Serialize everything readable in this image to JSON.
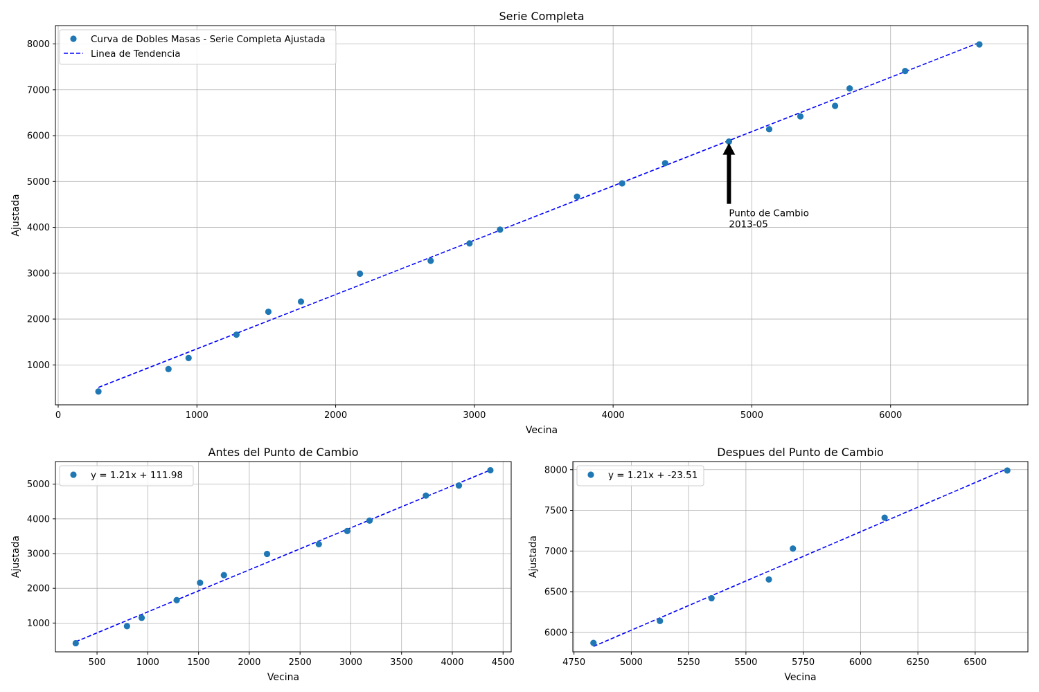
{
  "colors": {
    "points": "#1f77b4",
    "trend": "#0000ff",
    "grid": "#b0b0b0",
    "annotation_arrow": "#000000"
  },
  "chart_data": [
    {
      "type": "scatter",
      "title": "Serie Completa",
      "xlabel": "Vecina",
      "ylabel": "Ajustada",
      "xlim": [
        -20,
        6990
      ],
      "ylim": [
        130,
        8400
      ],
      "xticks": [
        0,
        1000,
        2000,
        3000,
        4000,
        5000,
        6000
      ],
      "yticks": [
        1000,
        2000,
        3000,
        4000,
        5000,
        6000,
        7000,
        8000
      ],
      "grid": true,
      "legend_placement": "top-left",
      "series": [
        {
          "name": "Curva de Dobles Masas - Serie Completa Ajustada",
          "kind": "points",
          "x": [
            290,
            795,
            940,
            1285,
            1515,
            1750,
            2175,
            2685,
            2965,
            3185,
            3740,
            4065,
            4375,
            4835,
            5125,
            5350,
            5600,
            5705,
            6105,
            6640
          ],
          "y": [
            420,
            910,
            1150,
            1660,
            2160,
            2380,
            2990,
            3270,
            3650,
            3950,
            4670,
            4960,
            5400,
            5870,
            6140,
            6420,
            6650,
            7030,
            7410,
            7990
          ]
        },
        {
          "name": "Linea de Tendencia",
          "kind": "dashed-line",
          "x": [
            290,
            6640
          ],
          "y": [
            510,
            8030
          ]
        }
      ],
      "annotation": {
        "text_lines": [
          "Punto de Cambio",
          "2013-05"
        ],
        "point": [
          4835,
          5870
        ],
        "text_at": [
          4835,
          4060
        ]
      }
    },
    {
      "type": "scatter",
      "title": "Antes del Punto de Cambio",
      "xlabel": "Vecina",
      "ylabel": "Ajustada",
      "xlim": [
        90,
        4580
      ],
      "ylim": [
        170,
        5650
      ],
      "xticks": [
        500,
        1000,
        1500,
        2000,
        2500,
        3000,
        3500,
        4000,
        4500
      ],
      "yticks": [
        1000,
        2000,
        3000,
        4000,
        5000
      ],
      "grid": true,
      "legend_placement": "top-left",
      "series": [
        {
          "name": "y = 1.21x + 111.98",
          "kind": "points",
          "x": [
            290,
            795,
            940,
            1285,
            1515,
            1750,
            2175,
            2685,
            2965,
            3185,
            3740,
            4065,
            4375
          ],
          "y": [
            420,
            910,
            1150,
            1660,
            2160,
            2380,
            2990,
            3270,
            3650,
            3950,
            4670,
            4960,
            5400
          ]
        },
        {
          "kind": "dashed-line",
          "x": [
            290,
            4375
          ],
          "y": [
            463,
            5406
          ]
        }
      ]
    },
    {
      "type": "scatter",
      "title": "Despues del Punto de Cambio",
      "xlabel": "Vecina",
      "ylabel": "Ajustada",
      "xlim": [
        4745,
        6730
      ],
      "ylim": [
        5760,
        8100
      ],
      "xticks": [
        4750,
        5000,
        5250,
        5500,
        5750,
        6000,
        6250,
        6500
      ],
      "yticks": [
        6000,
        6500,
        7000,
        7500,
        8000
      ],
      "grid": true,
      "legend_placement": "top-left",
      "series": [
        {
          "name": "y = 1.21x + -23.51",
          "kind": "points",
          "x": [
            4835,
            5125,
            5350,
            5600,
            5705,
            6105,
            6640
          ],
          "y": [
            5870,
            6140,
            6420,
            6650,
            7030,
            7410,
            7990
          ]
        },
        {
          "kind": "dashed-line",
          "x": [
            4835,
            6640
          ],
          "y": [
            5827,
            8011
          ]
        }
      ]
    }
  ]
}
